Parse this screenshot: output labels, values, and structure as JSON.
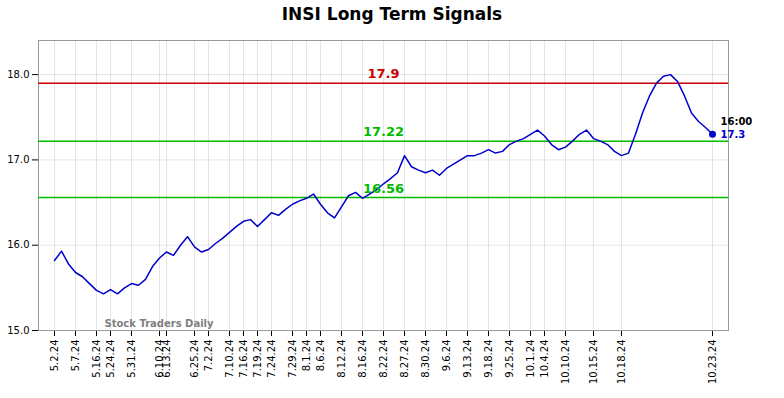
{
  "chart_data": {
    "type": "line",
    "title": "INSI Long Term Signals",
    "categories": [
      "5.2.24",
      null,
      null,
      "5.7.24",
      null,
      null,
      "5.16.24",
      null,
      "5.24.24",
      null,
      null,
      "5.31.24",
      null,
      null,
      null,
      "6.10.24",
      "6.13.24",
      null,
      null,
      null,
      "6.25.24",
      null,
      "7.2.24",
      null,
      null,
      "7.10.24",
      null,
      "7.16.24",
      null,
      "7.19.24",
      null,
      "7.24.24",
      null,
      null,
      "7.29.24",
      null,
      "8.1.24",
      null,
      "8.6.24",
      null,
      null,
      "8.12.24",
      null,
      null,
      "8.16.24",
      null,
      null,
      "8.22.24",
      null,
      null,
      "8.27.24",
      null,
      null,
      "8.30.24",
      null,
      null,
      "9.6.24",
      null,
      null,
      "9.13.24",
      null,
      null,
      "9.18.24",
      null,
      null,
      "9.25.24",
      null,
      null,
      "10.1.24",
      null,
      "10.4.24",
      null,
      null,
      "10.10.24",
      null,
      null,
      null,
      "10.15.24",
      null,
      null,
      null,
      "10.18.24",
      null,
      null,
      null,
      null,
      null,
      null,
      null,
      null,
      null,
      null,
      null,
      null,
      "10.23.24"
    ],
    "values": [
      15.82,
      15.93,
      15.78,
      15.68,
      15.63,
      15.55,
      15.47,
      15.43,
      15.48,
      15.43,
      15.5,
      15.55,
      15.53,
      15.6,
      15.75,
      15.85,
      15.92,
      15.88,
      16.0,
      16.1,
      15.98,
      15.92,
      15.95,
      16.02,
      16.08,
      16.15,
      16.22,
      16.28,
      16.3,
      16.22,
      16.3,
      16.38,
      16.35,
      16.42,
      16.48,
      16.52,
      16.55,
      16.6,
      16.48,
      16.38,
      16.32,
      16.45,
      16.58,
      16.62,
      16.55,
      16.6,
      16.65,
      16.72,
      16.78,
      16.85,
      17.05,
      16.92,
      16.88,
      16.85,
      16.88,
      16.82,
      16.9,
      16.95,
      17.0,
      17.05,
      17.05,
      17.08,
      17.12,
      17.08,
      17.1,
      17.18,
      17.22,
      17.25,
      17.3,
      17.35,
      17.28,
      17.18,
      17.12,
      17.15,
      17.22,
      17.3,
      17.35,
      17.25,
      17.22,
      17.18,
      17.1,
      17.05,
      17.08,
      17.3,
      17.55,
      17.75,
      17.9,
      17.98,
      18.0,
      17.92,
      17.75,
      17.55,
      17.45,
      17.38,
      17.3
    ],
    "color": "#0000cc",
    "reference_lines": [
      {
        "value": 17.9,
        "label": "17.9",
        "color": "#cc0000"
      },
      {
        "value": 17.22,
        "label": "17.22",
        "color": "#00bb00"
      },
      {
        "value": 16.56,
        "label": "16.56",
        "color": "#00bb00"
      }
    ],
    "annotations": [
      {
        "text": "16:00",
        "x": 94,
        "y": 17.3,
        "color": "#000000"
      },
      {
        "text": "17.3",
        "x": 94,
        "y": 17.3,
        "color": "#0000cc"
      },
      {
        "text": "Stock Traders Daily",
        "x": 6,
        "y": 15.08,
        "color": "gray"
      }
    ],
    "ylim": [
      15.0,
      18.4
    ],
    "yticks": [
      15,
      16,
      17,
      18
    ],
    "grid": true
  }
}
